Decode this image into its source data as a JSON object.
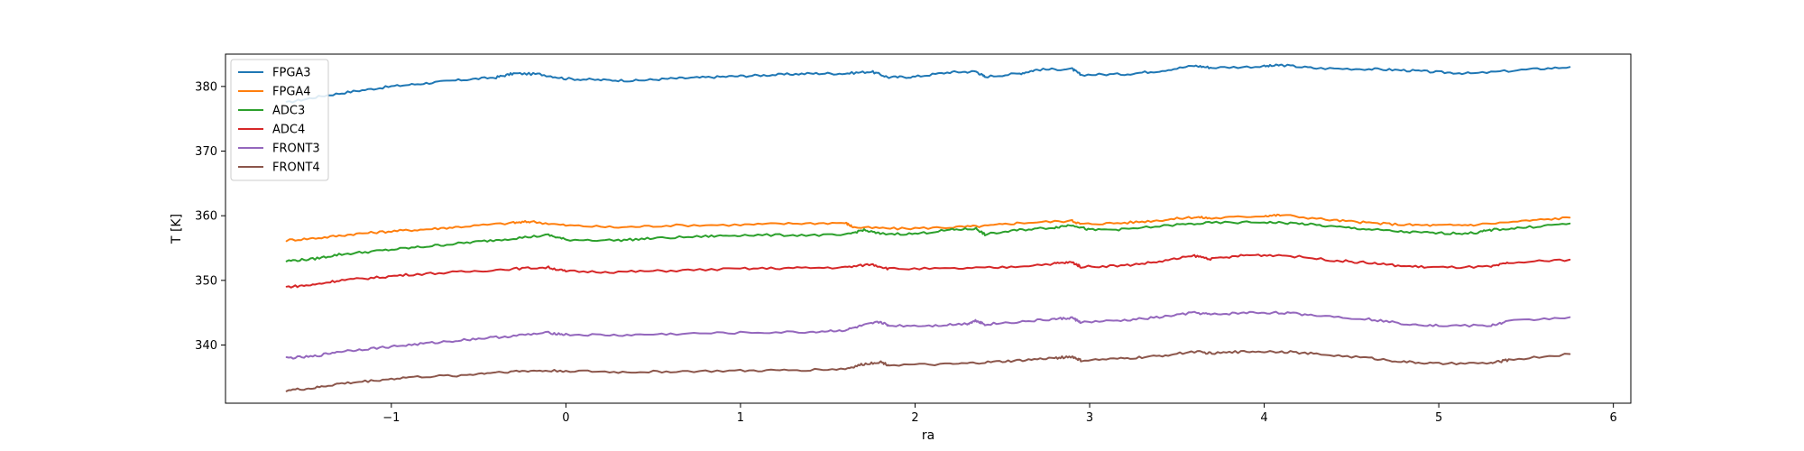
{
  "chart_data": {
    "type": "line",
    "title": "",
    "xlabel": "ra",
    "ylabel": "T [K]",
    "xlim": [
      -1.95,
      6.1
    ],
    "ylim": [
      331,
      385
    ],
    "xticks": [
      -1,
      0,
      1,
      2,
      3,
      4,
      5,
      6
    ],
    "yticks": [
      340,
      350,
      360,
      370,
      380
    ],
    "grid": false,
    "legend_position": "top-left",
    "series": [
      {
        "name": "FPGA3",
        "color": "#1f77b4",
        "points": [
          [
            -1.6,
            377.5
          ],
          [
            -1.4,
            378.5
          ],
          [
            -1.2,
            379.3
          ],
          [
            -1.0,
            380.0
          ],
          [
            -0.8,
            380.5
          ],
          [
            -0.6,
            381.0
          ],
          [
            -0.4,
            381.4
          ],
          [
            -0.3,
            382.0
          ],
          [
            -0.15,
            381.9
          ],
          [
            0.0,
            381.2
          ],
          [
            0.2,
            381.0
          ],
          [
            0.4,
            380.9
          ],
          [
            0.6,
            381.2
          ],
          [
            0.8,
            381.4
          ],
          [
            1.0,
            381.6
          ],
          [
            1.2,
            381.8
          ],
          [
            1.4,
            382.0
          ],
          [
            1.6,
            382.0
          ],
          [
            1.75,
            382.3
          ],
          [
            1.85,
            381.4
          ],
          [
            2.0,
            381.5
          ],
          [
            2.2,
            382.2
          ],
          [
            2.35,
            382.3
          ],
          [
            2.4,
            381.5
          ],
          [
            2.6,
            382.0
          ],
          [
            2.7,
            382.6
          ],
          [
            2.9,
            382.7
          ],
          [
            2.95,
            381.8
          ],
          [
            3.2,
            381.9
          ],
          [
            3.4,
            382.4
          ],
          [
            3.6,
            383.2
          ],
          [
            3.7,
            382.9
          ],
          [
            4.0,
            383.1
          ],
          [
            4.1,
            383.3
          ],
          [
            4.3,
            382.8
          ],
          [
            4.6,
            382.7
          ],
          [
            4.8,
            382.5
          ],
          [
            5.0,
            382.2
          ],
          [
            5.2,
            382.0
          ],
          [
            5.5,
            382.6
          ],
          [
            5.75,
            383.0
          ]
        ]
      },
      {
        "name": "FPGA4",
        "color": "#ff7f0e",
        "points": [
          [
            -1.6,
            356.2
          ],
          [
            -1.4,
            356.6
          ],
          [
            -1.2,
            357.2
          ],
          [
            -1.0,
            357.6
          ],
          [
            -0.8,
            357.9
          ],
          [
            -0.6,
            358.3
          ],
          [
            -0.3,
            358.9
          ],
          [
            -0.2,
            359.1
          ],
          [
            0.0,
            358.5
          ],
          [
            0.3,
            358.2
          ],
          [
            0.6,
            358.5
          ],
          [
            1.0,
            358.6
          ],
          [
            1.3,
            358.8
          ],
          [
            1.6,
            358.9
          ],
          [
            1.65,
            358.2
          ],
          [
            1.9,
            358.0
          ],
          [
            2.2,
            358.2
          ],
          [
            2.4,
            358.4
          ],
          [
            2.6,
            358.9
          ],
          [
            2.9,
            359.2
          ],
          [
            2.95,
            358.7
          ],
          [
            3.2,
            358.9
          ],
          [
            3.4,
            359.3
          ],
          [
            3.6,
            359.8
          ],
          [
            3.7,
            359.6
          ],
          [
            4.0,
            360.0
          ],
          [
            4.1,
            360.1
          ],
          [
            4.4,
            359.3
          ],
          [
            4.6,
            358.9
          ],
          [
            4.8,
            358.6
          ],
          [
            5.0,
            358.5
          ],
          [
            5.2,
            358.6
          ],
          [
            5.5,
            359.2
          ],
          [
            5.75,
            359.7
          ]
        ]
      },
      {
        "name": "ADC3",
        "color": "#2ca02c",
        "points": [
          [
            -1.6,
            353.0
          ],
          [
            -1.45,
            353.3
          ],
          [
            -1.3,
            354.0
          ],
          [
            -1.1,
            354.5
          ],
          [
            -0.9,
            355.0
          ],
          [
            -0.7,
            355.5
          ],
          [
            -0.5,
            356.0
          ],
          [
            -0.3,
            356.5
          ],
          [
            -0.1,
            357.0
          ],
          [
            0.0,
            356.3
          ],
          [
            0.3,
            356.2
          ],
          [
            0.5,
            356.5
          ],
          [
            0.8,
            356.8
          ],
          [
            1.0,
            357.0
          ],
          [
            1.3,
            357.0
          ],
          [
            1.6,
            357.0
          ],
          [
            1.7,
            357.8
          ],
          [
            1.8,
            357.2
          ],
          [
            2.0,
            357.2
          ],
          [
            2.2,
            357.8
          ],
          [
            2.35,
            358.0
          ],
          [
            2.4,
            357.1
          ],
          [
            2.6,
            357.8
          ],
          [
            2.8,
            358.2
          ],
          [
            2.9,
            358.6
          ],
          [
            3.0,
            357.8
          ],
          [
            3.2,
            357.9
          ],
          [
            3.5,
            358.6
          ],
          [
            3.7,
            358.9
          ],
          [
            4.0,
            359.0
          ],
          [
            4.2,
            358.8
          ],
          [
            4.4,
            358.3
          ],
          [
            4.6,
            357.9
          ],
          [
            4.8,
            357.5
          ],
          [
            5.0,
            357.3
          ],
          [
            5.2,
            357.3
          ],
          [
            5.3,
            357.8
          ],
          [
            5.5,
            358.2
          ],
          [
            5.75,
            358.8
          ]
        ]
      },
      {
        "name": "ADC4",
        "color": "#d62728",
        "points": [
          [
            -1.6,
            349.0
          ],
          [
            -1.45,
            349.3
          ],
          [
            -1.3,
            350.0
          ],
          [
            -1.1,
            350.4
          ],
          [
            -0.9,
            350.9
          ],
          [
            -0.6,
            351.3
          ],
          [
            -0.3,
            351.8
          ],
          [
            -0.1,
            352.0
          ],
          [
            0.0,
            351.4
          ],
          [
            0.3,
            351.3
          ],
          [
            0.6,
            351.5
          ],
          [
            1.0,
            351.8
          ],
          [
            1.3,
            351.9
          ],
          [
            1.6,
            352.0
          ],
          [
            1.75,
            352.5
          ],
          [
            1.85,
            351.8
          ],
          [
            2.2,
            351.8
          ],
          [
            2.5,
            352.0
          ],
          [
            2.8,
            352.6
          ],
          [
            2.9,
            352.8
          ],
          [
            2.95,
            352.1
          ],
          [
            3.2,
            352.3
          ],
          [
            3.4,
            352.9
          ],
          [
            3.6,
            353.8
          ],
          [
            3.7,
            353.3
          ],
          [
            3.9,
            353.9
          ],
          [
            4.1,
            353.9
          ],
          [
            4.4,
            353.1
          ],
          [
            4.6,
            352.7
          ],
          [
            4.8,
            352.2
          ],
          [
            5.0,
            352.0
          ],
          [
            5.3,
            352.1
          ],
          [
            5.4,
            352.7
          ],
          [
            5.75,
            353.2
          ]
        ]
      },
      {
        "name": "FRONT3",
        "color": "#9467bd",
        "points": [
          [
            -1.6,
            338.0
          ],
          [
            -1.45,
            338.2
          ],
          [
            -1.3,
            339.0
          ],
          [
            -1.1,
            339.5
          ],
          [
            -0.9,
            340.0
          ],
          [
            -0.7,
            340.5
          ],
          [
            -0.5,
            341.0
          ],
          [
            -0.3,
            341.4
          ],
          [
            -0.1,
            341.9
          ],
          [
            0.0,
            341.6
          ],
          [
            0.3,
            341.5
          ],
          [
            0.6,
            341.7
          ],
          [
            1.0,
            341.9
          ],
          [
            1.4,
            342.0
          ],
          [
            1.6,
            342.3
          ],
          [
            1.7,
            343.0
          ],
          [
            1.8,
            343.6
          ],
          [
            1.85,
            343.0
          ],
          [
            2.1,
            343.0
          ],
          [
            2.3,
            343.3
          ],
          [
            2.35,
            343.8
          ],
          [
            2.4,
            343.2
          ],
          [
            2.6,
            343.6
          ],
          [
            2.8,
            344.0
          ],
          [
            2.9,
            344.2
          ],
          [
            2.95,
            343.5
          ],
          [
            3.2,
            343.8
          ],
          [
            3.4,
            344.3
          ],
          [
            3.6,
            345.0
          ],
          [
            3.7,
            344.7
          ],
          [
            3.9,
            345.0
          ],
          [
            4.1,
            345.0
          ],
          [
            4.3,
            344.6
          ],
          [
            4.6,
            344.0
          ],
          [
            4.8,
            343.3
          ],
          [
            5.0,
            343.0
          ],
          [
            5.3,
            343.0
          ],
          [
            5.4,
            343.7
          ],
          [
            5.75,
            344.3
          ]
        ]
      },
      {
        "name": "FRONT4",
        "color": "#8c564b",
        "points": [
          [
            -1.6,
            333.0
          ],
          [
            -1.45,
            333.3
          ],
          [
            -1.3,
            334.0
          ],
          [
            -1.1,
            334.5
          ],
          [
            -0.9,
            335.0
          ],
          [
            -0.6,
            335.3
          ],
          [
            -0.4,
            335.8
          ],
          [
            -0.2,
            336.0
          ],
          [
            0.0,
            336.0
          ],
          [
            0.3,
            335.8
          ],
          [
            0.6,
            335.9
          ],
          [
            1.0,
            336.0
          ],
          [
            1.3,
            336.1
          ],
          [
            1.6,
            336.3
          ],
          [
            1.7,
            337.0
          ],
          [
            1.8,
            337.4
          ],
          [
            1.85,
            336.9
          ],
          [
            2.2,
            337.0
          ],
          [
            2.4,
            337.3
          ],
          [
            2.6,
            337.6
          ],
          [
            2.8,
            338.0
          ],
          [
            2.9,
            338.2
          ],
          [
            2.95,
            337.6
          ],
          [
            3.2,
            337.9
          ],
          [
            3.4,
            338.3
          ],
          [
            3.6,
            339.0
          ],
          [
            3.7,
            338.7
          ],
          [
            3.9,
            339.0
          ],
          [
            4.1,
            339.0
          ],
          [
            4.3,
            338.6
          ],
          [
            4.6,
            338.0
          ],
          [
            4.8,
            337.4
          ],
          [
            5.0,
            337.1
          ],
          [
            5.3,
            337.2
          ],
          [
            5.4,
            337.7
          ],
          [
            5.75,
            338.6
          ]
        ]
      }
    ]
  }
}
